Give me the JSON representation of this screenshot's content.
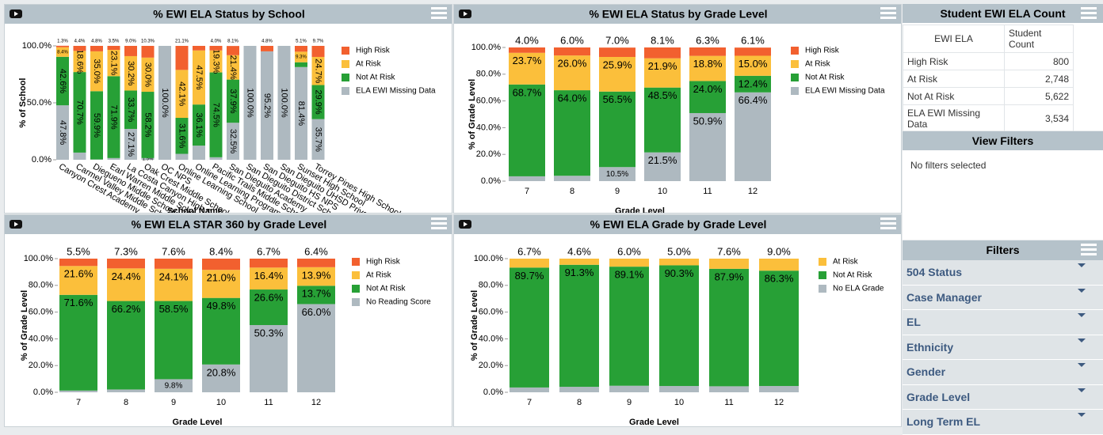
{
  "chart_data": [
    {
      "type": "bar",
      "stacked": true,
      "title": "% EWI ELA Status by School",
      "x_label": "School Name",
      "y_label": "% of School",
      "categories": [
        "Canyon Crest Academy",
        "Carmel Valley Middle School",
        "Diegueno Middle School",
        "Earl Warren Middle School",
        "La Costa Canyon High School",
        "Oak Crest Middle School",
        "OC NPS",
        "Online Learning School",
        "Online Learning Program",
        "Pacific Trails Middle School",
        "San Dieguito Academy",
        "San Dieguito District School",
        "San Dieguito HS NPS",
        "San Dieguito UHSD Private",
        "Sunset High School",
        "Torrey Pines High School"
      ],
      "series": [
        {
          "name": "High Risk",
          "color": "#f2602f",
          "values": [
            1.3,
            4.4,
            4.8,
            3.5,
            9.0,
            10.3,
            0,
            21.1,
            4.0,
            4.0,
            8.1,
            0,
            4.8,
            0,
            5.1,
            9.7
          ],
          "value_labels": [
            "1.3%",
            "4.4%",
            "4.8%",
            "3.5%",
            "9.0%",
            "10.3%",
            null,
            "21.1%",
            null,
            "4.0%",
            "8.1%",
            null,
            "4.8%",
            null,
            "5.1%",
            "9.7%"
          ]
        },
        {
          "name": "At Risk",
          "color": "#fbbf3b",
          "values": [
            8.4,
            18.6,
            35.0,
            23.1,
            30.2,
            30.0,
            0,
            42.1,
            47.5,
            19.3,
            21.4,
            0,
            0,
            0,
            9.3,
            24.7
          ],
          "value_labels": [
            "8.4%",
            "18.6%",
            "35.0%",
            "23.1%",
            "30.2%",
            "30.0%",
            null,
            "42.1%",
            "47.5%",
            "19.3%",
            "21.4%",
            null,
            null,
            null,
            "9.3%",
            "24.7%"
          ]
        },
        {
          "name": "Not At Risk",
          "color": "#27a036",
          "values": [
            42.6,
            70.7,
            59.9,
            71.9,
            33.7,
            58.2,
            0,
            31.6,
            36.1,
            74.5,
            37.9,
            0,
            0,
            0,
            4.2,
            29.9
          ],
          "value_labels": [
            "42.6%",
            "70.7%",
            "59.9%",
            "71.9%",
            "33.7%",
            "58.2%",
            null,
            "31.6%",
            "36.1%",
            "74.5%",
            "37.9%",
            null,
            null,
            null,
            null,
            "29.9%"
          ]
        },
        {
          "name": "ELA EWI Missing Data",
          "color": "#aeb9c0",
          "values": [
            47.8,
            6.3,
            0.3,
            1.5,
            27.1,
            1.5,
            100.0,
            5.2,
            12.4,
            2.2,
            32.5,
            100.0,
            95.2,
            100.0,
            81.4,
            35.7
          ],
          "value_labels": [
            "47.8%",
            null,
            null,
            null,
            "27.1%",
            "1.5%",
            "100.0%",
            null,
            null,
            null,
            "32.5%",
            "100.0%",
            "95.2%",
            "100.0%",
            "81.4%",
            "35.7%"
          ]
        }
      ],
      "ylim": [
        0,
        100
      ],
      "yticks": [
        {
          "value": 0,
          "label": "0.0%"
        },
        {
          "value": 50,
          "label": "50.0%"
        },
        {
          "value": 100,
          "label": "100.0%"
        }
      ]
    },
    {
      "type": "bar",
      "stacked": true,
      "title": "% EWI ELA Status by Grade Level",
      "x_label": "Grade Level",
      "y_label": "% of Grade Level",
      "categories": [
        "7",
        "8",
        "9",
        "10",
        "11",
        "12"
      ],
      "series": [
        {
          "name": "High Risk",
          "color": "#f2602f",
          "values": [
            4.0,
            6.0,
            7.0,
            8.1,
            6.3,
            6.1
          ],
          "value_labels": [
            "4.0%",
            "6.0%",
            "7.0%",
            "8.1%",
            "6.3%",
            "6.1%"
          ]
        },
        {
          "name": "At Risk",
          "color": "#fbbf3b",
          "values": [
            23.7,
            26.0,
            25.9,
            21.9,
            18.8,
            15.0
          ],
          "value_labels": [
            "23.7%",
            "26.0%",
            "25.9%",
            "21.9%",
            "18.8%",
            "15.0%"
          ]
        },
        {
          "name": "Not At Risk",
          "color": "#27a036",
          "values": [
            68.7,
            64.0,
            56.5,
            48.5,
            24.0,
            12.4
          ],
          "value_labels": [
            "68.7%",
            "64.0%",
            "56.5%",
            "48.5%",
            "24.0%",
            "12.4%"
          ]
        },
        {
          "name": "ELA EWI Missing Data",
          "color": "#aeb9c0",
          "values": [
            3.6,
            4.0,
            10.5,
            21.5,
            50.9,
            66.4
          ],
          "value_labels": [
            null,
            null,
            "10.5%",
            "21.5%",
            "50.9%",
            "66.4%"
          ]
        }
      ],
      "ylim": [
        0,
        100
      ],
      "yticks": [
        {
          "value": 0,
          "label": "0.0%"
        },
        {
          "value": 20,
          "label": "20.0%"
        },
        {
          "value": 40,
          "label": "40.0%"
        },
        {
          "value": 60,
          "label": "60.0%"
        },
        {
          "value": 80,
          "label": "80.0%"
        },
        {
          "value": 100,
          "label": "100.0%"
        }
      ]
    },
    {
      "type": "bar",
      "stacked": true,
      "title": "% EWI ELA STAR 360 by Grade Level",
      "x_label": "Grade Level",
      "y_label": "% of Grade Level",
      "categories": [
        "7",
        "8",
        "9",
        "10",
        "11",
        "12"
      ],
      "series": [
        {
          "name": "High Risk",
          "color": "#f2602f",
          "values": [
            5.5,
            7.3,
            7.6,
            8.4,
            6.7,
            6.4
          ],
          "value_labels": [
            "5.5%",
            "7.3%",
            "7.6%",
            "8.4%",
            "6.7%",
            "6.4%"
          ]
        },
        {
          "name": "At Risk",
          "color": "#fbbf3b",
          "values": [
            21.6,
            24.4,
            24.1,
            21.0,
            16.4,
            13.9
          ],
          "value_labels": [
            "21.6%",
            "24.4%",
            "24.1%",
            "21.0%",
            "16.4%",
            "13.9%"
          ]
        },
        {
          "name": "Not At Risk",
          "color": "#27a036",
          "values": [
            71.6,
            66.2,
            58.5,
            49.8,
            26.6,
            13.7
          ],
          "value_labels": [
            "71.6%",
            "66.2%",
            "58.5%",
            "49.8%",
            "26.6%",
            "13.7%"
          ]
        },
        {
          "name": "No Reading Score",
          "color": "#aeb9c0",
          "values": [
            1.3,
            2.1,
            9.8,
            20.8,
            50.3,
            66.0
          ],
          "value_labels": [
            null,
            null,
            "9.8%",
            "20.8%",
            "50.3%",
            "66.0%"
          ]
        }
      ],
      "ylim": [
        0,
        100
      ],
      "yticks": [
        {
          "value": 0,
          "label": "0.0%"
        },
        {
          "value": 20,
          "label": "20.0%"
        },
        {
          "value": 40,
          "label": "40.0%"
        },
        {
          "value": 60,
          "label": "60.0%"
        },
        {
          "value": 80,
          "label": "80.0%"
        },
        {
          "value": 100,
          "label": "100.0%"
        }
      ]
    },
    {
      "type": "bar",
      "stacked": true,
      "title": "% EWI ELA Grade by Grade Level",
      "x_label": "Grade Level",
      "y_label": "% of Grade Level",
      "categories": [
        "7",
        "8",
        "9",
        "10",
        "11",
        "12"
      ],
      "series": [
        {
          "name": "At Risk",
          "color": "#fbbf3b",
          "values": [
            6.7,
            4.6,
            6.0,
            5.0,
            7.6,
            9.0
          ],
          "value_labels": [
            "6.7%",
            "4.6%",
            "6.0%",
            "5.0%",
            "7.6%",
            "9.0%"
          ]
        },
        {
          "name": "Not At Risk",
          "color": "#27a036",
          "values": [
            89.7,
            91.3,
            89.1,
            90.3,
            87.9,
            86.3
          ],
          "value_labels": [
            "89.7%",
            "91.3%",
            "89.1%",
            "90.3%",
            "87.9%",
            "86.3%"
          ]
        },
        {
          "name": "No ELA Grade",
          "color": "#aeb9c0",
          "values": [
            3.6,
            4.1,
            4.9,
            4.7,
            4.5,
            4.7
          ],
          "value_labels": [
            null,
            null,
            null,
            null,
            null,
            null
          ]
        }
      ],
      "ylim": [
        0,
        100
      ],
      "yticks": [
        {
          "value": 0,
          "label": "0.0%"
        },
        {
          "value": 20,
          "label": "20.0%"
        },
        {
          "value": 40,
          "label": "40.0%"
        },
        {
          "value": 60,
          "label": "60.0%"
        },
        {
          "value": 80,
          "label": "80.0%"
        },
        {
          "value": 100,
          "label": "100.0%"
        }
      ]
    }
  ],
  "sidebar": {
    "count_table": {
      "title": "Student EWI ELA Count",
      "columns": [
        "EWI ELA",
        "Student Count"
      ],
      "rows": [
        [
          "High Risk",
          "800"
        ],
        [
          "At Risk",
          "2,748"
        ],
        [
          "Not At Risk",
          "5,622"
        ],
        [
          "ELA EWI Missing Data",
          "3,534"
        ]
      ]
    },
    "view_filters": {
      "title": "View Filters",
      "text": "No filters selected"
    },
    "filters": {
      "title": "Filters",
      "items": [
        "504 Status",
        "Case Manager",
        "EL",
        "Ethnicity",
        "Gender",
        "Grade Level",
        "Long Term EL"
      ]
    }
  }
}
